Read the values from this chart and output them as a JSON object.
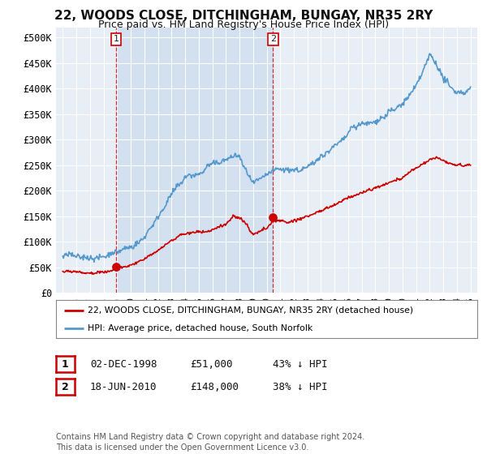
{
  "title": "22, WOODS CLOSE, DITCHINGHAM, BUNGAY, NR35 2RY",
  "subtitle": "Price paid vs. HM Land Registry's House Price Index (HPI)",
  "ytick_labels": [
    "£0",
    "£50K",
    "£100K",
    "£150K",
    "£200K",
    "£250K",
    "£300K",
    "£350K",
    "£400K",
    "£450K",
    "£500K"
  ],
  "ytick_values": [
    0,
    50000,
    100000,
    150000,
    200000,
    250000,
    300000,
    350000,
    400000,
    450000,
    500000
  ],
  "ylim": [
    0,
    520000
  ],
  "background_color": "#ffffff",
  "plot_bg_color": "#e8eef5",
  "shade_color": "#d0dff0",
  "grid_color": "#ffffff",
  "red_line_color": "#cc0000",
  "blue_line_color": "#5599cc",
  "sale1_x": 1998.92,
  "sale1_y": 51000,
  "sale2_x": 2010.46,
  "sale2_y": 148000,
  "legend_red": "22, WOODS CLOSE, DITCHINGHAM, BUNGAY, NR35 2RY (detached house)",
  "legend_blue": "HPI: Average price, detached house, South Norfolk",
  "footnote": "Contains HM Land Registry data © Crown copyright and database right 2024.\nThis data is licensed under the Open Government Licence v3.0.",
  "xmin": 1994.5,
  "xmax": 2025.5
}
